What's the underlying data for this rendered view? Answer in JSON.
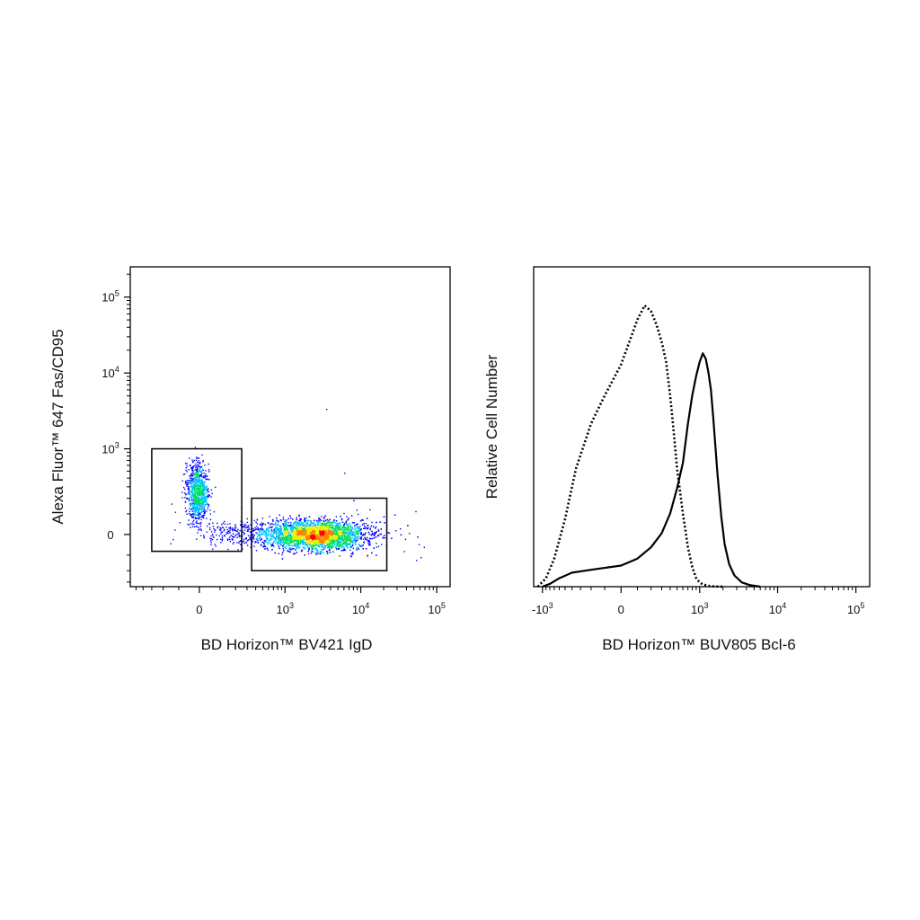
{
  "chart_data": [
    {
      "type": "scatter",
      "subtype": "flow-cytometry-density-dot-plot",
      "xlabel": "BD Horizon™ BV421 IgD",
      "ylabel": "Alexa Fluor™ 647 Fas/CD95",
      "x_scale": "biexponential",
      "y_scale": "biexponential",
      "xlim": [
        -600,
        150000
      ],
      "ylim": [
        -350,
        250000
      ],
      "x_ticks": [
        {
          "value": 0,
          "base": "0",
          "exp": ""
        },
        {
          "value": 1000,
          "base": "10",
          "exp": "3"
        },
        {
          "value": 10000,
          "base": "10",
          "exp": "4"
        },
        {
          "value": 100000,
          "base": "10",
          "exp": "5"
        }
      ],
      "y_ticks": [
        {
          "value": 0,
          "base": "0",
          "exp": ""
        },
        {
          "value": 1000,
          "base": "10",
          "exp": "3"
        },
        {
          "value": 10000,
          "base": "10",
          "exp": "4"
        },
        {
          "value": 100000,
          "base": "10",
          "exp": "5"
        }
      ],
      "color_scale": [
        "#0000ff",
        "#00bfff",
        "#00e060",
        "#e8f000",
        "#ff8000",
        "#ff0000"
      ],
      "populations": [
        {
          "x_center": -10,
          "x_spread": 60,
          "y_center": 250,
          "y_spread": 120
        },
        {
          "x_center": 3500,
          "x_spread": 2500,
          "y_center": 0,
          "y_spread": 60
        }
      ],
      "gates": [
        {
          "x_range": [
            -300,
            250
          ],
          "y_range": [
            -80,
            1000
          ]
        },
        {
          "x_range": [
            350,
            22000
          ],
          "y_range": [
            -200,
            200
          ]
        }
      ],
      "grid": false,
      "legend": "none"
    },
    {
      "type": "line",
      "subtype": "histogram-overlay",
      "xlabel": "BD Horizon™ BUV805 Bcl-6",
      "ylabel": "Relative Cell Number",
      "x_scale": "biexponential",
      "xlim": [
        -1300,
        150000
      ],
      "ylim": [
        0,
        100
      ],
      "x_ticks": [
        {
          "value": -1000,
          "base": "-10",
          "exp": "3"
        },
        {
          "value": 0,
          "base": "0",
          "exp": ""
        },
        {
          "value": 1000,
          "base": "10",
          "exp": "3"
        },
        {
          "value": 10000,
          "base": "10",
          "exp": "4"
        },
        {
          "value": 100000,
          "base": "10",
          "exp": "5"
        }
      ],
      "series": [
        {
          "style": "dotted",
          "x": [
            -1150,
            -900,
            -700,
            -500,
            -350,
            -200,
            -100,
            0,
            100,
            150,
            200,
            250,
            300,
            350,
            400,
            450,
            500,
            600,
            700,
            800,
            900,
            1000,
            1100,
            1300,
            1500,
            2000
          ],
          "y": [
            0,
            3,
            10,
            24,
            42,
            58,
            68,
            79,
            95,
            100,
            98,
            93,
            87,
            80,
            68,
            55,
            42,
            26,
            14,
            7,
            3,
            1.5,
            0.8,
            0.3,
            0.1,
            0
          ]
        },
        {
          "style": "solid",
          "x": [
            -1000,
            -800,
            -600,
            -400,
            -200,
            0,
            100,
            200,
            300,
            400,
            500,
            600,
            700,
            800,
            900,
            1000,
            1100,
            1200,
            1300,
            1400,
            1500,
            1700,
            1900,
            2100,
            2400,
            2800,
            3500,
            4500,
            6000
          ],
          "y": [
            0,
            1,
            3,
            5,
            6,
            7.5,
            10,
            14,
            19,
            26,
            35,
            44,
            58,
            68,
            75,
            80,
            83,
            81,
            76,
            70,
            60,
            40,
            25,
            15,
            8,
            4,
            1.5,
            0.5,
            0
          ]
        }
      ],
      "grid": false,
      "legend": "none"
    }
  ]
}
